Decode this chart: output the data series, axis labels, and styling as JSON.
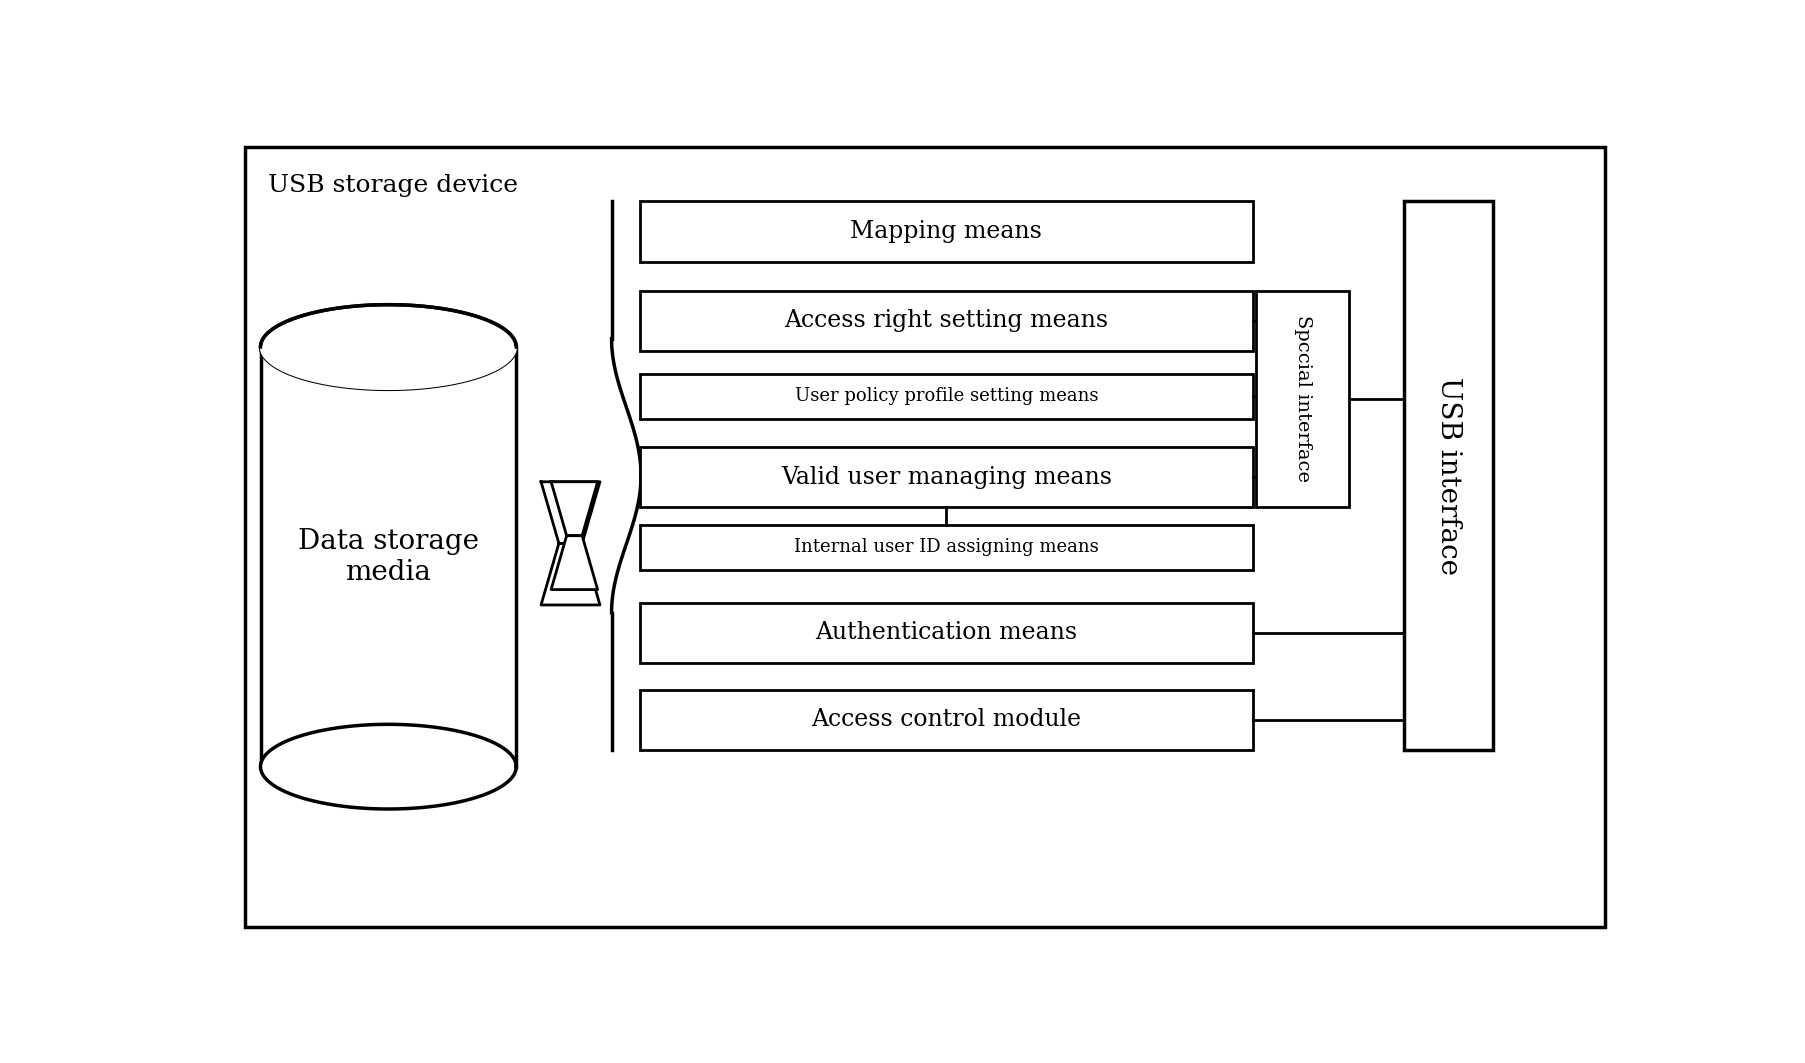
{
  "outer_box_label": "USB storage device",
  "usb_interface_label": "USB interface",
  "special_interface_label": "Spccial interface",
  "cylinder_label": "Data storage\nmedia",
  "boxes": [
    {
      "label": "Mapping means",
      "fontsize": 17,
      "bold": false
    },
    {
      "label": "Access right setting means",
      "fontsize": 17,
      "bold": false
    },
    {
      "label": "User policy profile setting means",
      "fontsize": 13,
      "bold": false
    },
    {
      "label": "Valid user managing means",
      "fontsize": 17,
      "bold": false
    },
    {
      "label": "Internal user ID assigning means",
      "fontsize": 13,
      "bold": false
    },
    {
      "label": "Authentication means",
      "fontsize": 17,
      "bold": false
    },
    {
      "label": "Access control module",
      "fontsize": 17,
      "bold": false
    }
  ],
  "bg_color": "#ffffff",
  "line_color": "#000000",
  "outer_label_fontsize": 18,
  "cylinder_fontsize": 20,
  "usb_fontsize": 20,
  "special_fontsize": 14
}
